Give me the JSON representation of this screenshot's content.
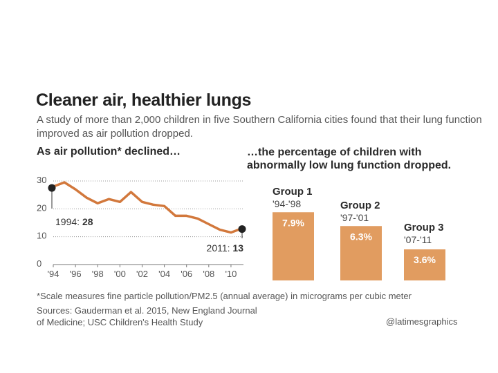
{
  "title": "Cleaner air, healthier lungs",
  "subtitle": "A study of more than 2,000 children in five Southern California cities found that their lung function improved as air pollution dropped.",
  "left_heading": "As air pollution* declined…",
  "right_heading": "…the percentage of children with abnormally low lung function dropped.",
  "footnote": "*Scale measures fine particle pollution/PM2.5 (annual average) in micrograms per cubic meter",
  "sources": "Sources: Gauderman et al. 2015, New England Journal of Medicine; USC Children's Health Study",
  "credit": "@latimesgraphics",
  "colors": {
    "accent": "#d2783c",
    "bar": "#e19c60",
    "text": "#2a2a2a",
    "muted": "#555555",
    "grid": "#999999"
  },
  "chart_data": [
    {
      "type": "line",
      "title": "As air pollution* declined…",
      "xlabel": "",
      "ylabel": "",
      "x": [
        1994,
        1995,
        1996,
        1997,
        1998,
        1999,
        2000,
        2001,
        2002,
        2003,
        2004,
        2005,
        2006,
        2007,
        2008,
        2009,
        2010,
        2011
      ],
      "series": [
        {
          "name": "PM2.5",
          "values": [
            28,
            29.5,
            27,
            24,
            22,
            23.5,
            22.5,
            26,
            22.5,
            21.5,
            21,
            17.5,
            17.5,
            16.5,
            14.5,
            12.5,
            11.5,
            13
          ]
        }
      ],
      "ylim": [
        0,
        30
      ],
      "xlim": [
        1994,
        2011
      ],
      "yticks": [
        0,
        10,
        20,
        30
      ],
      "xtick_labels": [
        "'94",
        "'96",
        "'98",
        "'00",
        "'02",
        "'04",
        "'06",
        "'08",
        "'10"
      ],
      "xtick_values": [
        1994,
        1996,
        1998,
        2000,
        2002,
        2004,
        2006,
        2008,
        2010
      ],
      "grid": true,
      "annotations": [
        {
          "year": 1994,
          "value": 28,
          "prefix": "1994: ",
          "value_text": "28"
        },
        {
          "year": 2011,
          "value": 13,
          "prefix": "2011: ",
          "value_text": "13"
        }
      ]
    },
    {
      "type": "bar",
      "title": "…the percentage of children with abnormally low lung function dropped.",
      "categories": [
        "Group 1",
        "Group 2",
        "Group 3"
      ],
      "periods": [
        "'94-'98",
        "'97-'01",
        "'07-'11"
      ],
      "values": [
        7.9,
        6.3,
        3.6
      ],
      "value_labels": [
        "7.9%",
        "6.3%",
        "3.6%"
      ],
      "unit": "%"
    }
  ]
}
